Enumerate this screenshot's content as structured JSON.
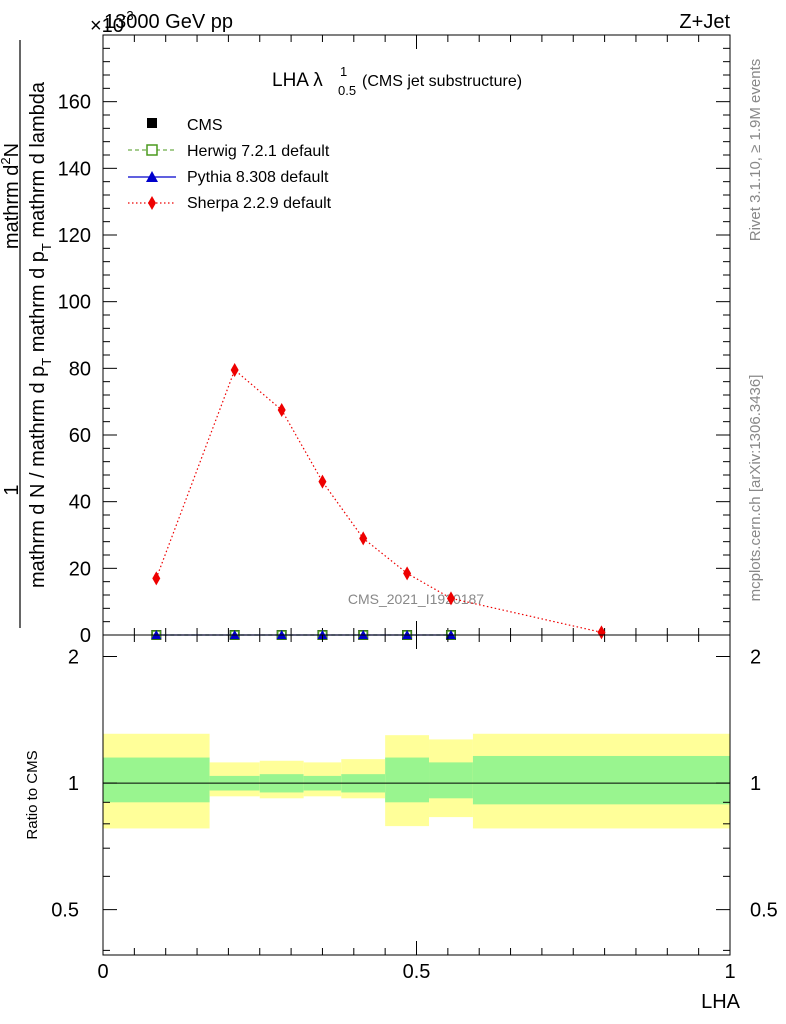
{
  "header": {
    "left": "13000 GeV pp",
    "right": "Z+Jet",
    "multiplier_prefix": "×10",
    "multiplier_exp": "-3"
  },
  "plot_title": {
    "main": "LHA λ",
    "sup": "1",
    "sub": "0.5",
    "rest": " (CMS jet substructure)"
  },
  "side_labels": {
    "rivet": "Rivet 3.1.10, ≥ 1.9M events",
    "mcplots": "mcplots.cern.ch [arXiv:1306.3436]"
  },
  "watermark": "CMS_2021_I1920187",
  "y_label": {
    "numerator": "1",
    "line1": "mathrm d N / mathrm d p",
    "line1_sub": "T",
    "line1_tail": " mathrm d p",
    "line1_sub2": "T",
    "line1_tail2": " mathrm d lambda",
    "top_num": "mathrm d",
    "top_sup": "2",
    "top_tail": "N"
  },
  "ratio_ylabel": "Ratio to CMS",
  "x_label": "LHA",
  "legend": [
    {
      "label": "CMS",
      "color": "#000000",
      "marker": "square",
      "line": "none"
    },
    {
      "label": "Herwig 7.2.1 default",
      "color": "#4b9a1e",
      "marker": "open-square",
      "line": "dashed"
    },
    {
      "label": "Pythia 8.308 default",
      "color": "#0000cc",
      "marker": "triangle",
      "line": "solid"
    },
    {
      "label": "Sherpa 2.2.9 default",
      "color": "#ee0000",
      "marker": "diamond",
      "line": "dotted"
    }
  ],
  "chart_data": [
    {
      "type": "line",
      "title": "LHA λ^1_0.5 (CMS jet substructure)",
      "xlabel": "",
      "ylabel": "1/(mathrm d N / mathrm d p_T) mathrm d^2N / (mathrm d p_T mathrm d lambda)",
      "xlim": [
        0,
        1
      ],
      "ylim": [
        0,
        180
      ],
      "y_multiplier": "×10^-3",
      "yticks": [
        0,
        20,
        40,
        60,
        80,
        100,
        120,
        140,
        160
      ],
      "series": [
        {
          "name": "CMS",
          "x": [
            0.085,
            0.21,
            0.285,
            0.35,
            0.415,
            0.485,
            0.555
          ],
          "y": [
            0,
            0,
            0,
            0,
            0,
            0,
            0
          ]
        },
        {
          "name": "Herwig 7.2.1 default",
          "x": [
            0.085,
            0.21,
            0.285,
            0.35,
            0.415,
            0.485,
            0.555
          ],
          "y": [
            0,
            0,
            0,
            0,
            0,
            0,
            0
          ]
        },
        {
          "name": "Pythia 8.308 default",
          "x": [
            0.085,
            0.21,
            0.285,
            0.35,
            0.415,
            0.485,
            0.555
          ],
          "y": [
            0,
            0,
            0,
            0,
            0,
            0,
            0
          ]
        },
        {
          "name": "Sherpa 2.2.9 default",
          "x": [
            0.085,
            0.21,
            0.285,
            0.35,
            0.415,
            0.485,
            0.555,
            0.795
          ],
          "y": [
            17,
            79.5,
            67.5,
            46,
            29,
            18.5,
            11,
            0.8
          ]
        }
      ],
      "legend_position": "top-left"
    },
    {
      "type": "area",
      "xlabel": "LHA",
      "ylabel": "Ratio to CMS",
      "xlim": [
        0,
        1
      ],
      "ylim": [
        0.39,
        2.25
      ],
      "y_scale": "log",
      "yticks": [
        0.5,
        1,
        2
      ],
      "xticks": [
        0,
        0.5,
        1
      ],
      "xtick_labels": [
        "0",
        "0.5",
        "1"
      ],
      "reference_line": 1,
      "bands": [
        {
          "x0": 0.0,
          "x1": 0.17,
          "inner": [
            0.9,
            1.15
          ],
          "outer": [
            0.78,
            1.31
          ]
        },
        {
          "x0": 0.17,
          "x1": 0.25,
          "inner": [
            0.96,
            1.04
          ],
          "outer": [
            0.93,
            1.12
          ]
        },
        {
          "x0": 0.25,
          "x1": 0.32,
          "inner": [
            0.95,
            1.05
          ],
          "outer": [
            0.92,
            1.13
          ]
        },
        {
          "x0": 0.32,
          "x1": 0.38,
          "inner": [
            0.96,
            1.04
          ],
          "outer": [
            0.93,
            1.12
          ]
        },
        {
          "x0": 0.38,
          "x1": 0.45,
          "inner": [
            0.95,
            1.05
          ],
          "outer": [
            0.92,
            1.14
          ]
        },
        {
          "x0": 0.45,
          "x1": 0.52,
          "inner": [
            0.9,
            1.15
          ],
          "outer": [
            0.79,
            1.3
          ]
        },
        {
          "x0": 0.52,
          "x1": 0.59,
          "inner": [
            0.92,
            1.12
          ],
          "outer": [
            0.83,
            1.27
          ]
        },
        {
          "x0": 0.59,
          "x1": 1.0,
          "inner": [
            0.89,
            1.16
          ],
          "outer": [
            0.78,
            1.31
          ]
        }
      ],
      "colors": {
        "inner": "#99f58f",
        "outer": "#ffff99"
      }
    }
  ]
}
